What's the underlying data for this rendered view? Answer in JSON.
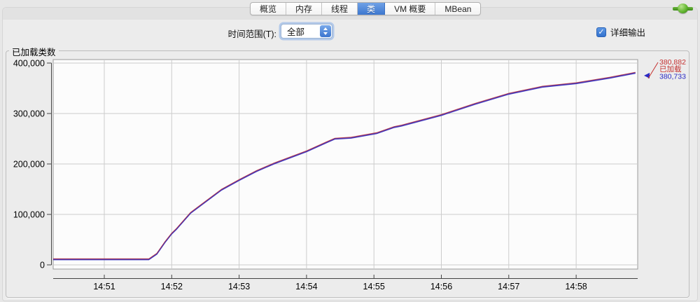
{
  "header": {
    "tabs": [
      {
        "id": "overview",
        "label": "概览",
        "active": false
      },
      {
        "id": "memory",
        "label": "内存",
        "active": false
      },
      {
        "id": "threads",
        "label": "线程",
        "active": false
      },
      {
        "id": "classes",
        "label": "类",
        "active": true
      },
      {
        "id": "vm-summary",
        "label": "VM 概要",
        "active": false
      },
      {
        "id": "mbean",
        "label": "MBean",
        "active": false
      }
    ],
    "connection_icon": "green-plug-icon"
  },
  "toolbar": {
    "time_range_label": "时间范围(T):",
    "time_range_value": "全部",
    "verbose_checkbox": {
      "label": "详细输出",
      "checked": true,
      "checkmark": "✓"
    }
  },
  "colors": {
    "accent_blue": "#3d77cf",
    "line_purple": "#5a3caa",
    "series_red": "#c42f2f",
    "series_blue": "#2b2bc4",
    "grid": "#cccccc",
    "plot_bg": "#fcfcfc",
    "axis": "#444444"
  },
  "chart_data": {
    "type": "line",
    "title": "已加载类数",
    "xlabel": "",
    "ylabel": "",
    "x_tick_labels": [
      "14:51",
      "14:52",
      "14:53",
      "14:54",
      "14:55",
      "14:56",
      "14:57",
      "14:58"
    ],
    "y_tick_labels": [
      "0",
      "100,000",
      "200,000",
      "300,000",
      "400,000"
    ],
    "ylim": [
      0,
      400000
    ],
    "x_minutes_range": [
      -0.758,
      7.92
    ],
    "grid": true,
    "series": [
      {
        "id": "loaded-total",
        "legend": "已加载",
        "color": "#c42f2f",
        "end_value": 380882,
        "end_label": "380,882"
      },
      {
        "id": "loaded-current",
        "legend": "",
        "color": "#2b2bc4",
        "end_value": 380733,
        "end_label": "380,733"
      }
    ],
    "points_t_minutes_from_1451_vs_classes": [
      [
        -0.758,
        11000
      ],
      [
        0.66,
        11000
      ],
      [
        0.78,
        22000
      ],
      [
        0.9,
        45000
      ],
      [
        1.0,
        62000
      ],
      [
        1.07,
        71000
      ],
      [
        1.28,
        103000
      ],
      [
        1.49,
        124000
      ],
      [
        1.74,
        149000
      ],
      [
        2.0,
        168000
      ],
      [
        2.26,
        186000
      ],
      [
        2.52,
        201000
      ],
      [
        3.0,
        225000
      ],
      [
        3.3,
        243000
      ],
      [
        3.42,
        250000
      ],
      [
        3.66,
        252000
      ],
      [
        4.04,
        261000
      ],
      [
        4.3,
        273000
      ],
      [
        4.41,
        276000
      ],
      [
        5.0,
        297000
      ],
      [
        5.5,
        319000
      ],
      [
        6.0,
        339000
      ],
      [
        6.5,
        353000
      ],
      [
        7.0,
        360000
      ],
      [
        7.5,
        371000
      ],
      [
        7.88,
        380733
      ]
    ],
    "annotation": {
      "top": "380,882",
      "label": "已加载",
      "bottom": "380,733"
    }
  }
}
